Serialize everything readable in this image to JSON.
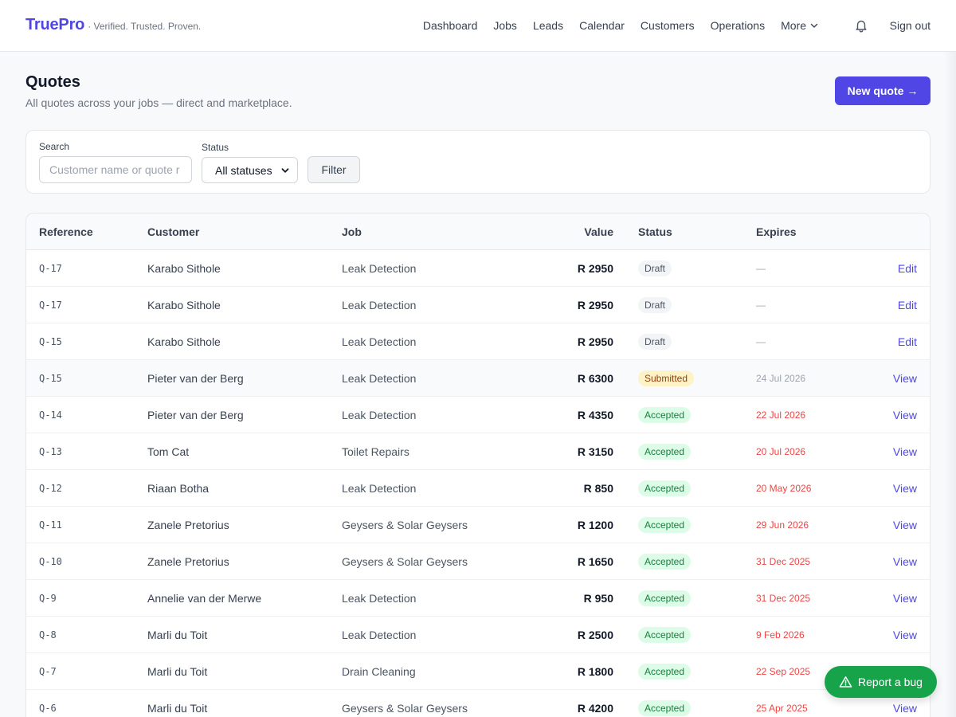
{
  "header": {
    "brand_name": "TruePro",
    "brand_tagline": "· Verified. Trusted. Proven.",
    "nav": [
      {
        "label": "Dashboard"
      },
      {
        "label": "Jobs"
      },
      {
        "label": "Leads"
      },
      {
        "label": "Calendar"
      },
      {
        "label": "Customers"
      },
      {
        "label": "Operations"
      },
      {
        "label": "More",
        "icon": "chevron-down-icon"
      }
    ],
    "notifications_icon": "bell-icon",
    "sign_out": "Sign out"
  },
  "page": {
    "title": "Quotes",
    "subtitle": "All quotes across your jobs — direct and marketplace.",
    "new_quote_label": "New quote →"
  },
  "filters": {
    "search_label": "Search",
    "search_placeholder": "Customer name or quote r",
    "status_label": "Status",
    "status_selected": "All statuses",
    "filter_button": "Filter"
  },
  "table": {
    "columns": [
      "Reference",
      "Customer",
      "Job",
      "Value",
      "Status",
      "Expires"
    ],
    "rows": [
      {
        "ref": "Q-17",
        "customer": "Karabo Sithole",
        "job": "Leak Detection",
        "value": "R 2950",
        "status": "Draft",
        "expires": "—",
        "action": "Edit"
      },
      {
        "ref": "Q-17",
        "customer": "Karabo Sithole",
        "job": "Leak Detection",
        "value": "R 2950",
        "status": "Draft",
        "expires": "—",
        "action": "Edit"
      },
      {
        "ref": "Q-15",
        "customer": "Karabo Sithole",
        "job": "Leak Detection",
        "value": "R 2950",
        "status": "Draft",
        "expires": "—",
        "action": "Edit"
      },
      {
        "ref": "Q-15",
        "customer": "Pieter van der Berg",
        "job": "Leak Detection",
        "value": "R 6300",
        "status": "Submitted",
        "expires": "24 Jul 2026",
        "action": "View"
      },
      {
        "ref": "Q-14",
        "customer": "Pieter van der Berg",
        "job": "Leak Detection",
        "value": "R 4350",
        "status": "Accepted",
        "expires": "22 Jul 2026",
        "action": "View"
      },
      {
        "ref": "Q-13",
        "customer": "Tom Cat",
        "job": "Toilet Repairs",
        "value": "R 3150",
        "status": "Accepted",
        "expires": "20 Jul 2026",
        "action": "View"
      },
      {
        "ref": "Q-12",
        "customer": "Riaan Botha",
        "job": "Leak Detection",
        "value": "R 850",
        "status": "Accepted",
        "expires": "20 May 2026",
        "action": "View"
      },
      {
        "ref": "Q-11",
        "customer": "Zanele Pretorius",
        "job": "Geysers & Solar Geysers",
        "value": "R 1200",
        "status": "Accepted",
        "expires": "29 Jun 2026",
        "action": "View"
      },
      {
        "ref": "Q-10",
        "customer": "Zanele Pretorius",
        "job": "Geysers & Solar Geysers",
        "value": "R 1650",
        "status": "Accepted",
        "expires": "31 Dec 2025",
        "action": "View"
      },
      {
        "ref": "Q-9",
        "customer": "Annelie van der Merwe",
        "job": "Leak Detection",
        "value": "R 950",
        "status": "Accepted",
        "expires": "31 Dec 2025",
        "action": "View"
      },
      {
        "ref": "Q-8",
        "customer": "Marli du Toit",
        "job": "Leak Detection",
        "value": "R 2500",
        "status": "Accepted",
        "expires": "9 Feb 2026",
        "action": "View"
      },
      {
        "ref": "Q-7",
        "customer": "Marli du Toit",
        "job": "Drain Cleaning",
        "value": "R 1800",
        "status": "Accepted",
        "expires": "22 Sep 2025",
        "action": "View"
      },
      {
        "ref": "Q-6",
        "customer": "Marli du Toit",
        "job": "Geysers & Solar Geysers",
        "value": "R 4200",
        "status": "Accepted",
        "expires": "25 Apr 2025",
        "action": "View"
      }
    ]
  },
  "status_colors": {
    "Draft": {
      "bg": "#f3f4f6",
      "fg": "#4b5563"
    },
    "Submitted": {
      "bg": "#fef3c7",
      "fg": "#92400e"
    },
    "Accepted": {
      "bg": "#dcfce7",
      "fg": "#15803d"
    }
  },
  "colors": {
    "accent": "#4f46e5",
    "expired_text": "#ef4444",
    "muted_text": "#9ca3af",
    "bug_button": "#16a34a"
  },
  "report_bug": {
    "label": "Report a bug",
    "icon": "warning-triangle-icon"
  }
}
